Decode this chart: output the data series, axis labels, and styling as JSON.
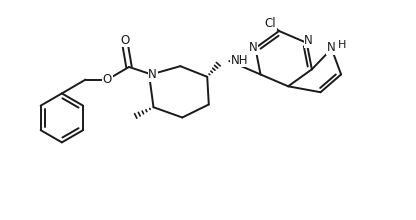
{
  "bg_color": "#ffffff",
  "line_color": "#1a1a1a",
  "line_width": 1.4,
  "font_size": 8.5,
  "figsize": [
    4.16,
    2.2
  ],
  "dpi": 100,
  "xlim": [
    0,
    10.4
  ],
  "ylim": [
    0,
    5.5
  ]
}
